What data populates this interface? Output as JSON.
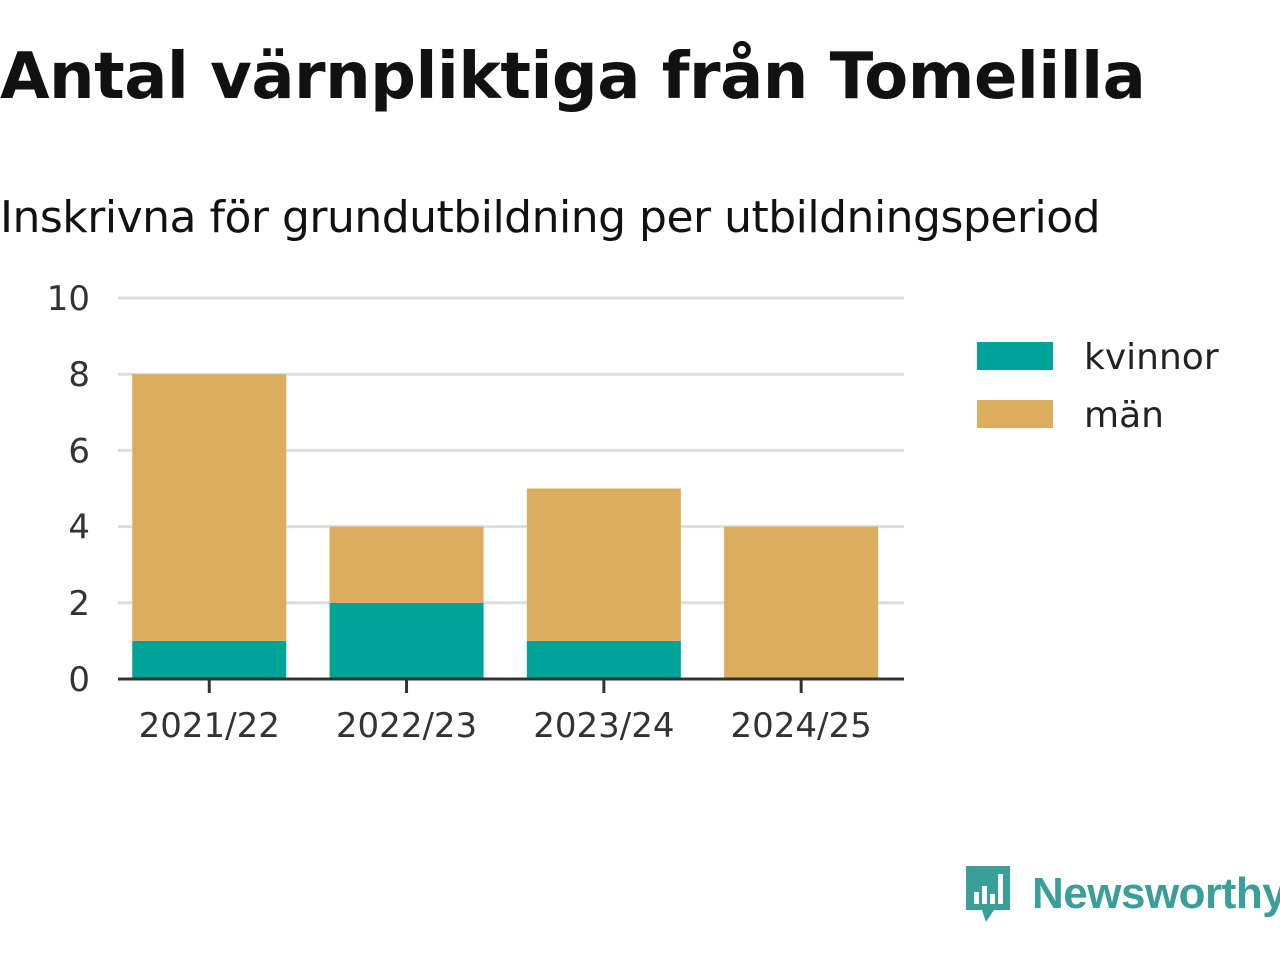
{
  "chart_data": {
    "type": "bar",
    "stacked": true,
    "title": "Antal värnpliktiga från Tomelilla",
    "subtitle": "Inskrivna för grundutbildning per utbildningsperiod",
    "categories": [
      "2021/22",
      "2022/23",
      "2023/24",
      "2024/25"
    ],
    "series": [
      {
        "name": "kvinnor",
        "color": "#00a398",
        "values": [
          1,
          2,
          1,
          0
        ]
      },
      {
        "name": "män",
        "color": "#dbad5c",
        "values": [
          7,
          2,
          4,
          4
        ]
      }
    ],
    "ylim": [
      0,
      10
    ],
    "yticks": [
      "0",
      "2",
      "4",
      "6",
      "8",
      "10"
    ],
    "grid": true,
    "legend": "right"
  },
  "brand": {
    "name": "Newsworthy",
    "icon": "newsworthy-logo-icon",
    "color": "#3a9e99"
  }
}
